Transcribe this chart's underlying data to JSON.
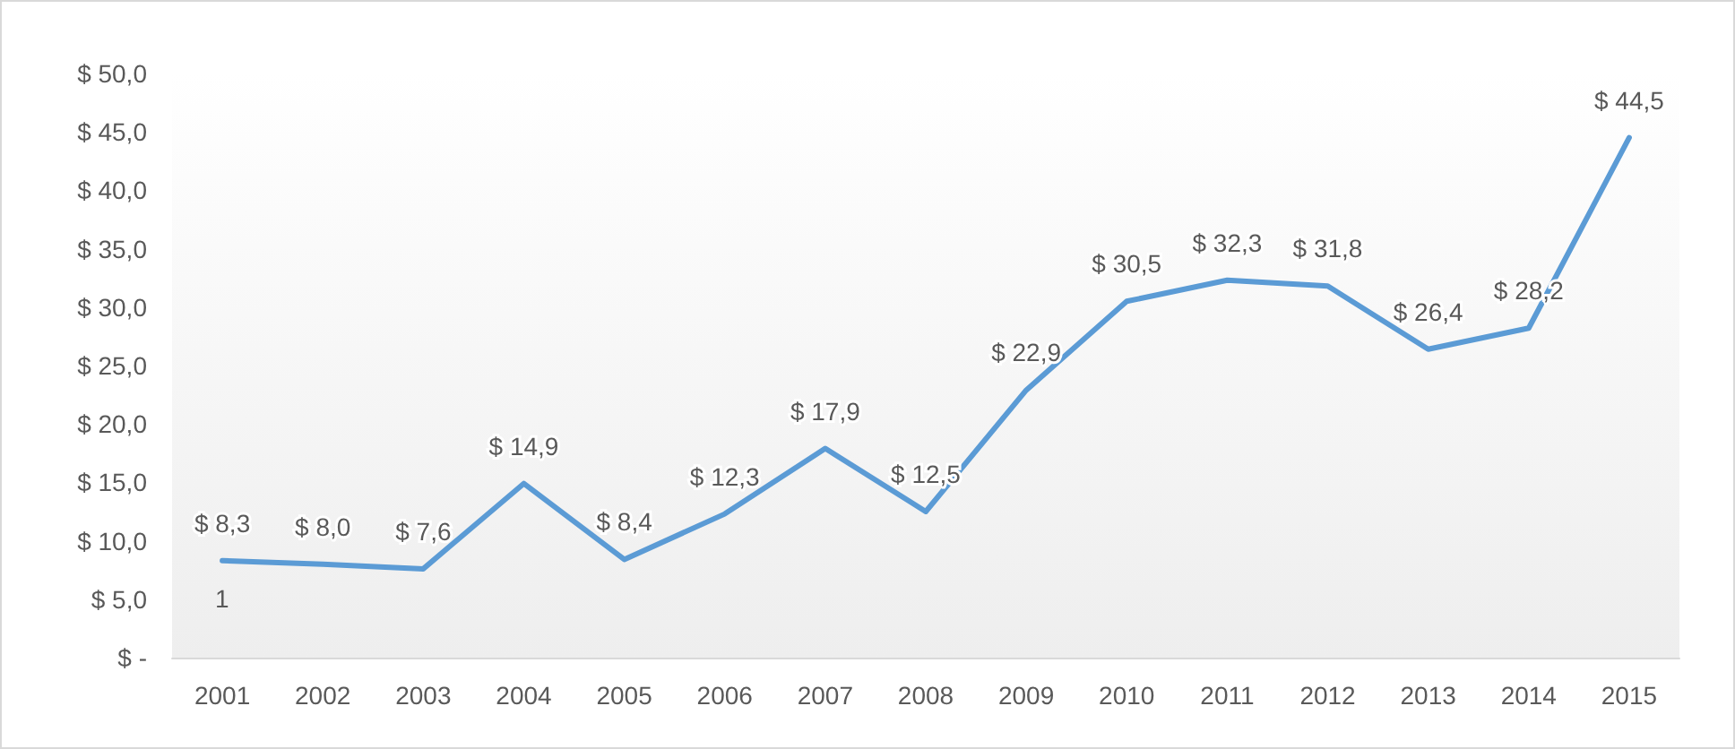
{
  "chart_data": {
    "type": "line",
    "categories": [
      "2001",
      "2002",
      "2003",
      "2004",
      "2005",
      "2006",
      "2007",
      "2008",
      "2009",
      "2010",
      "2011",
      "2012",
      "2013",
      "2014",
      "2015"
    ],
    "series": [
      {
        "color": "#5b9bd5",
        "values": [
          8.3,
          8.0,
          7.6,
          14.9,
          8.4,
          12.3,
          17.9,
          12.5,
          22.9,
          30.5,
          32.3,
          31.8,
          26.4,
          28.2,
          44.5
        ],
        "value_labels": [
          "$ 8,3",
          "$ 8,0",
          "$ 7,6",
          "$ 14,9",
          "$ 8,4",
          "$ 12,3",
          "$ 17,9",
          "$ 12,5",
          "$ 22,9",
          "$ 30,5",
          "$ 32,3",
          "$ 31,8",
          "$ 26,4",
          "$ 28,2",
          "$ 44,5"
        ]
      }
    ],
    "ylim": [
      0,
      50
    ],
    "yticks": [
      {
        "value": 0,
        "label": "$ -"
      },
      {
        "value": 5,
        "label": "$ 5,0"
      },
      {
        "value": 10,
        "label": "$ 10,0"
      },
      {
        "value": 15,
        "label": "$ 15,0"
      },
      {
        "value": 20,
        "label": "$ 20,0"
      },
      {
        "value": 25,
        "label": "$ 25,0"
      },
      {
        "value": 30,
        "label": "$ 30,0"
      },
      {
        "value": 35,
        "label": "$ 35,0"
      },
      {
        "value": 40,
        "label": "$ 40,0"
      },
      {
        "value": 45,
        "label": "$ 45,0"
      },
      {
        "value": 50,
        "label": "$ 50,0"
      }
    ],
    "annotations": [
      "1"
    ],
    "grid": false,
    "marker": "none",
    "line_style": "solid"
  }
}
